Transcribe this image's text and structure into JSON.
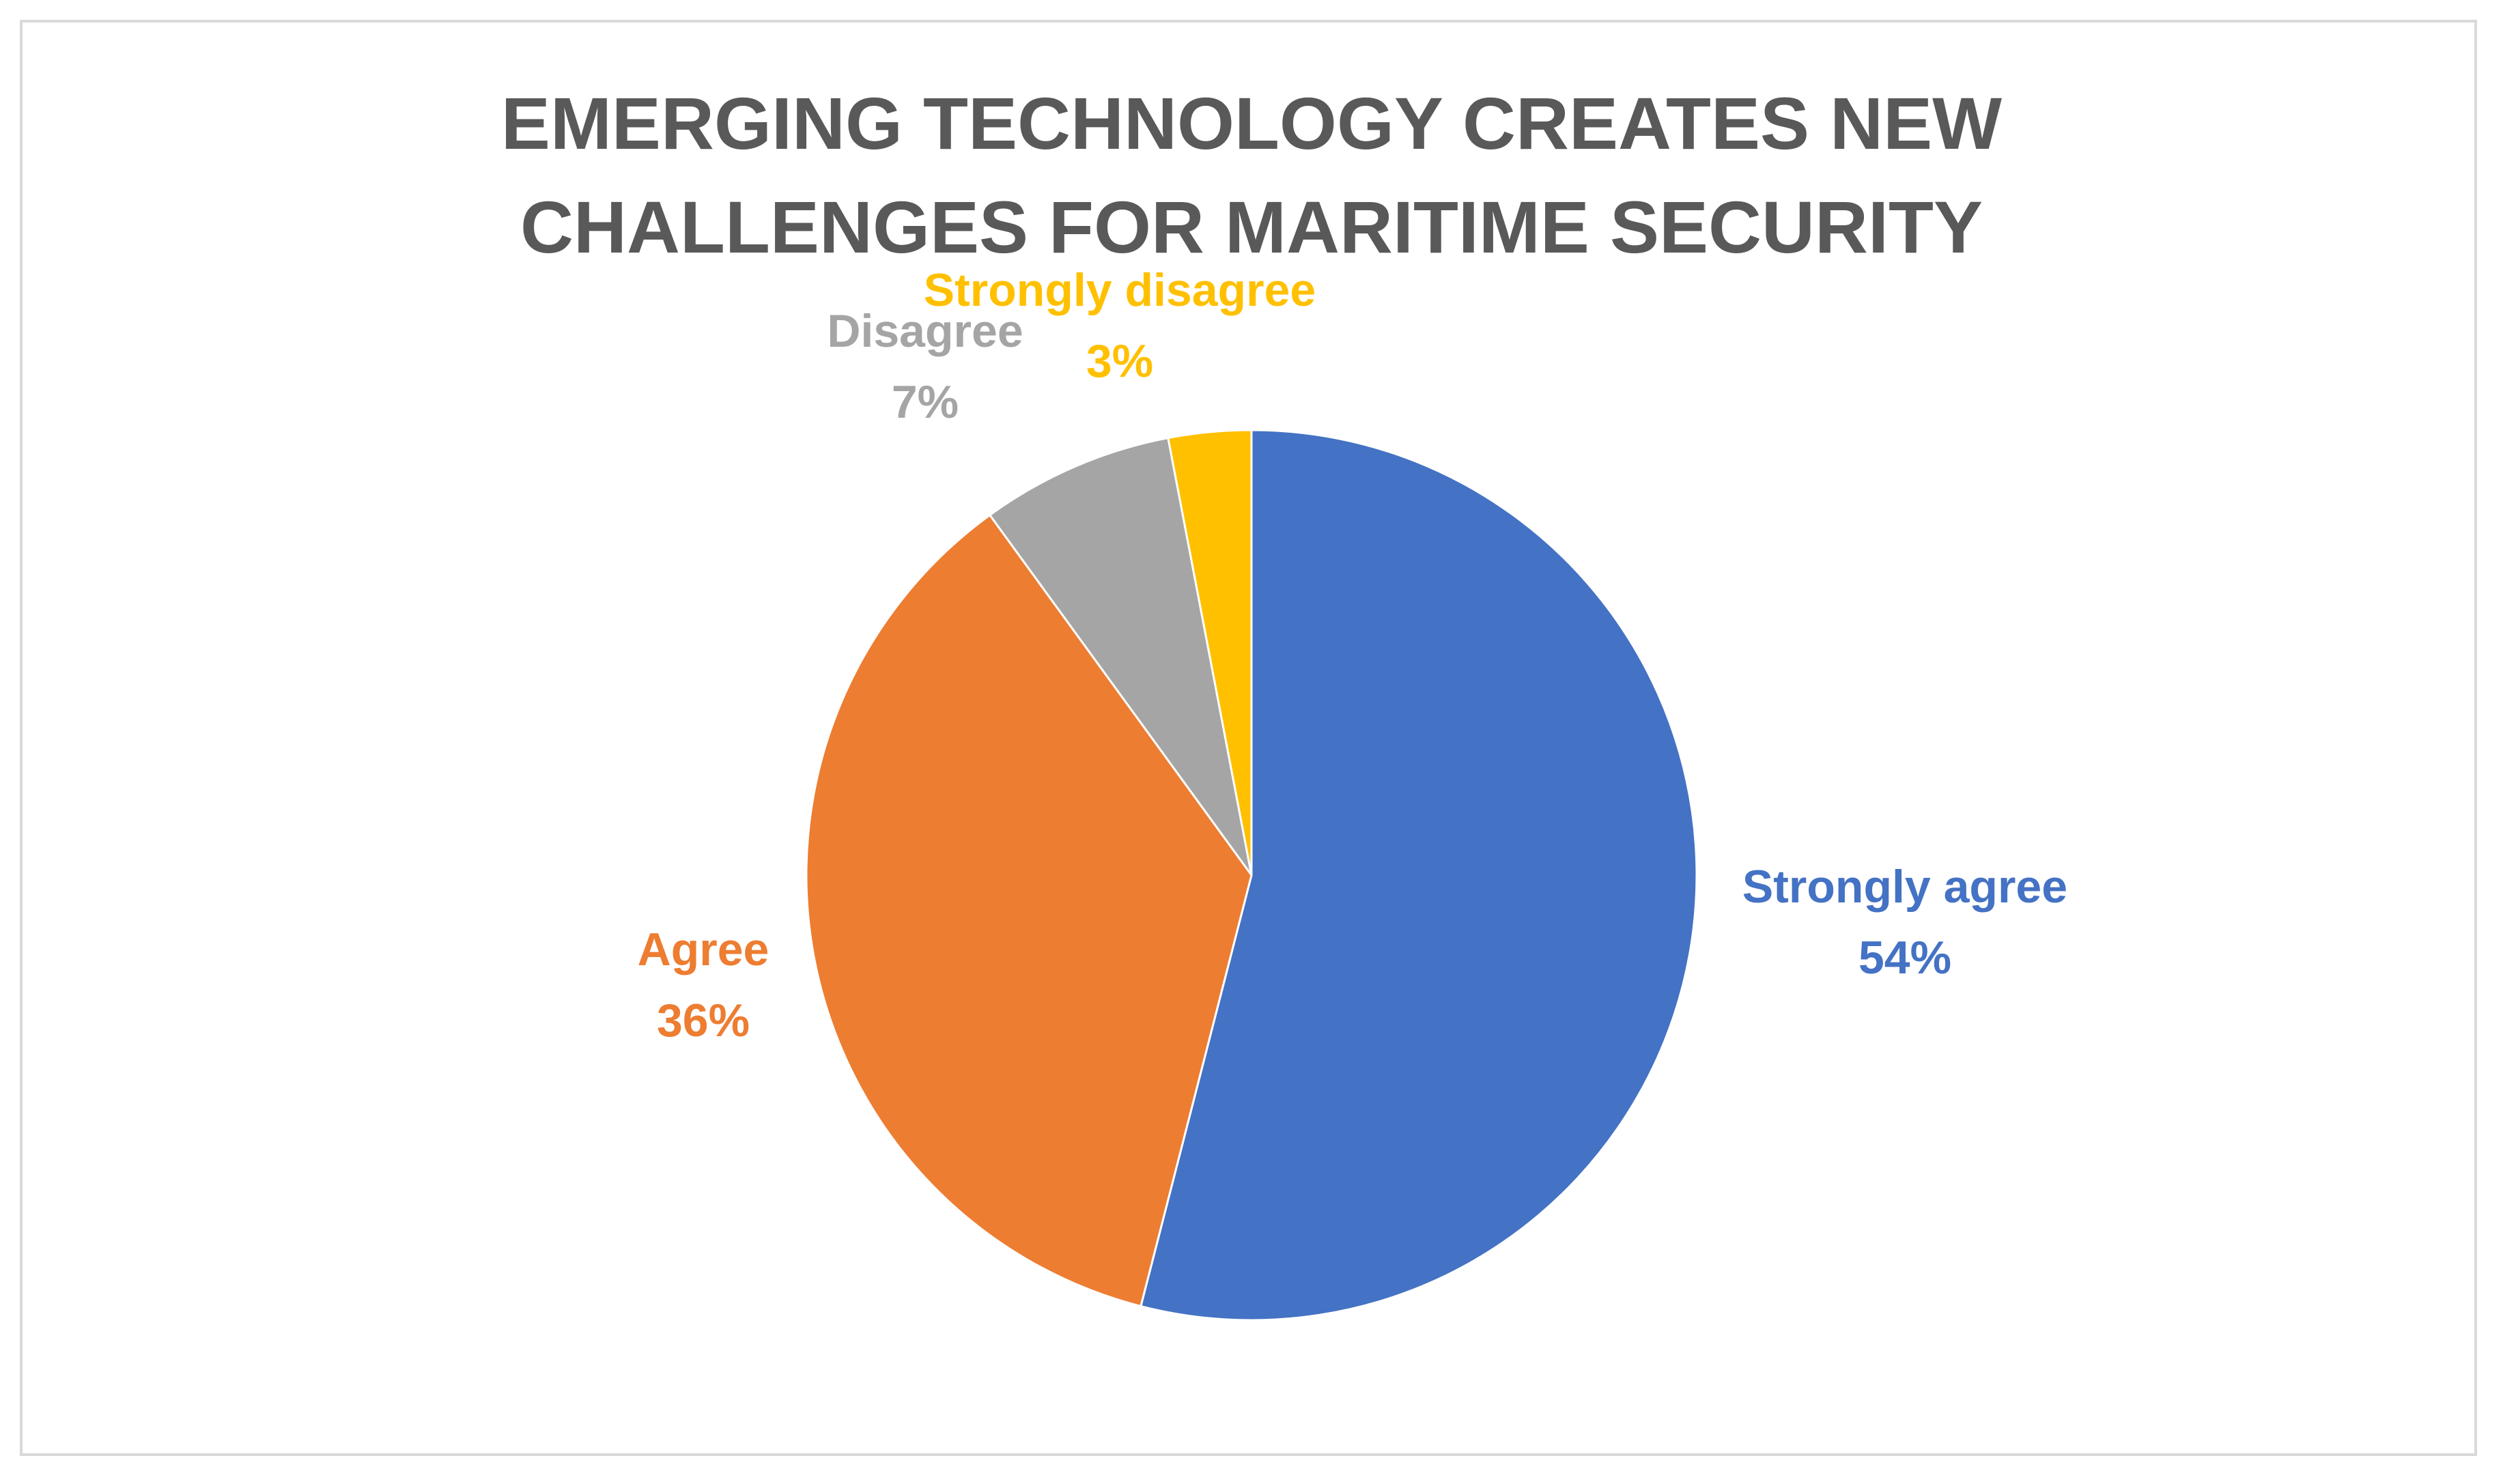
{
  "chart_data": {
    "type": "pie",
    "title_lines": [
      "EMERGING TECHNOLOGY CREATES NEW",
      "CHALLENGES FOR MARITIME SECURITY"
    ],
    "slices": [
      {
        "label": "Strongly agree",
        "value": 54,
        "percent_label": "54%",
        "color": "#4472c4"
      },
      {
        "label": "Agree",
        "value": 36,
        "percent_label": "36%",
        "color": "#ed7d31"
      },
      {
        "label": "Disagree",
        "value": 7,
        "percent_label": "7%",
        "color": "#a5a5a5"
      },
      {
        "label": "Strongly disagree",
        "value": 3,
        "percent_label": "3%",
        "color": "#ffc000"
      }
    ],
    "legend": "none",
    "data_labels": "outside"
  }
}
